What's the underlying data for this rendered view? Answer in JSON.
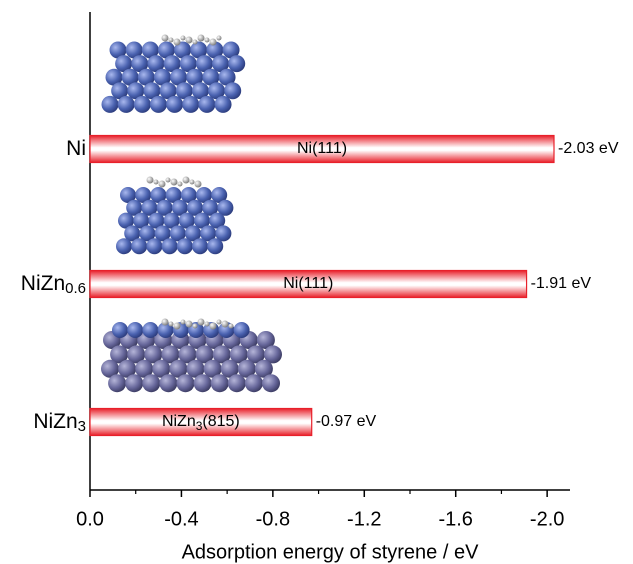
{
  "chart_data": {
    "type": "hbar",
    "xlabel": "Adsorption energy of styrene / eV",
    "categories": [
      "Ni",
      "NiZn0.6",
      "NiZn3"
    ],
    "values": [
      -2.03,
      -1.91,
      -0.97
    ],
    "value_labels": [
      "-2.03 eV",
      "-1.91 eV",
      "-0.97 eV"
    ],
    "bar_labels": [
      "Ni(111)",
      "Ni(111)",
      "NiZn3(815)"
    ],
    "color": "#e8202a",
    "xlim": [
      0,
      -2.1
    ],
    "xticks": [
      {
        "value": 0,
        "label": "0.0"
      },
      -0.4,
      -0.8,
      -1.2,
      -1.6,
      {
        "value": -2,
        "label": "-2.0"
      }
    ],
    "xminorticks": [
      -0.2,
      -0.6,
      -1.0,
      -1.4,
      -1.8
    ]
  }
}
